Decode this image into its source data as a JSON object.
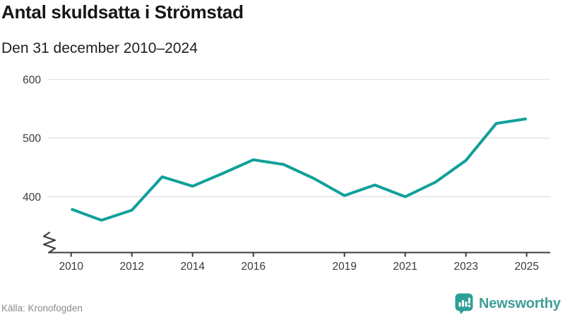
{
  "header": {
    "title": "Antal skuldsatta i Strömstad",
    "subtitle": "Den 31 december 2010–2024"
  },
  "footer": {
    "source": "Källa: Kronofogden",
    "brand": "Newsworthy"
  },
  "colors": {
    "line": "#10a09a",
    "grid": "#e2e2e2",
    "axis": "#3c3c3c",
    "tick_text": "#3a3a3a",
    "title_text": "#161616",
    "muted_text": "#8a8a8a",
    "brand_teal": "#2f9e97"
  },
  "chart_data": {
    "type": "line",
    "title": "Antal skuldsatta i Strömstad",
    "subtitle": "Den 31 december 2010–2024",
    "x": [
      2010,
      2011,
      2012,
      2013,
      2014,
      2015,
      2016,
      2017,
      2018,
      2019,
      2020,
      2021,
      2022,
      2023,
      2024,
      2025
    ],
    "series": [
      {
        "name": "Antal skuldsatta",
        "values": [
          379,
          360,
          377,
          434,
          418,
          440,
          463,
          455,
          431,
          402,
          420,
          400,
          425,
          462,
          525,
          533
        ]
      }
    ],
    "xlabel": "",
    "ylabel": "",
    "y_ticks": [
      400,
      500,
      600
    ],
    "x_tick_labels": [
      "2010",
      "2012",
      "2014",
      "2016",
      "2019",
      "2021",
      "2023",
      "2025"
    ],
    "x_tick_years": [
      2010,
      2012,
      2014,
      2016,
      2019,
      2021,
      2023,
      2025
    ],
    "ylim_shown": [
      305,
      600
    ],
    "axis_break": true,
    "grid": "horizontal-only",
    "legend": "none",
    "line_color": "#10a09a"
  }
}
